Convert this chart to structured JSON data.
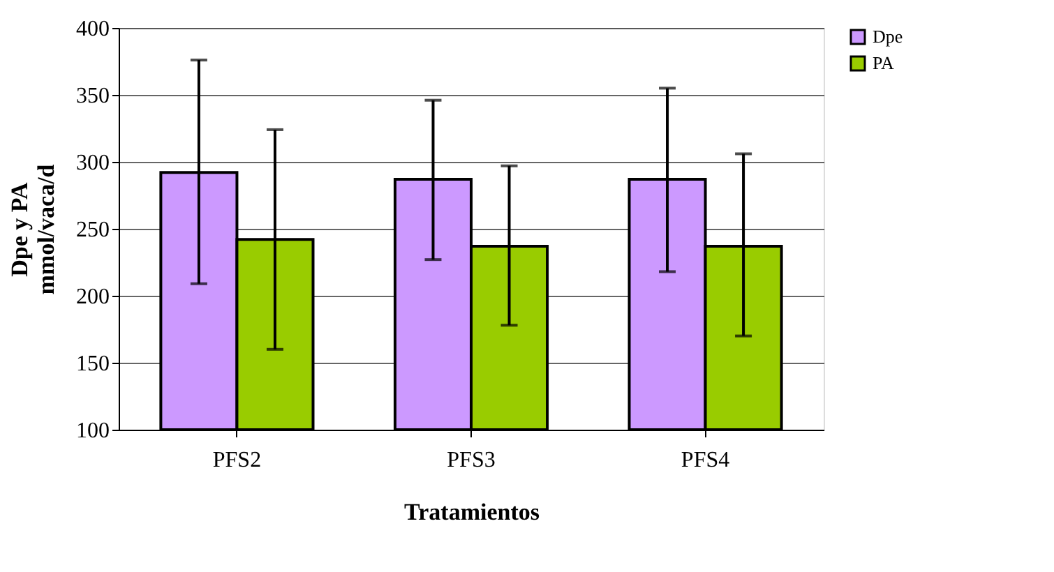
{
  "chart_data": {
    "type": "bar",
    "xlabel": "Tratamientos",
    "ylabel": "Dpe y PA\nmmol/vaca/d",
    "categories": [
      "PFS2",
      "PFS3",
      "PFS4"
    ],
    "series": [
      {
        "name": "Dpe",
        "color": "#cc99ff",
        "values": [
          292,
          287,
          287
        ],
        "errors": [
          [
            209,
            376
          ],
          [
            227,
            346
          ],
          [
            218,
            355
          ]
        ]
      },
      {
        "name": "PA",
        "color": "#99cc00",
        "values": [
          242,
          237,
          237
        ],
        "errors": [
          [
            160,
            324
          ],
          [
            178,
            297
          ],
          [
            170,
            306
          ]
        ]
      }
    ],
    "ylim": [
      100,
      400
    ],
    "yticks": [
      100,
      150,
      200,
      250,
      300,
      350,
      400
    ],
    "grid": "y",
    "legend": "right"
  }
}
